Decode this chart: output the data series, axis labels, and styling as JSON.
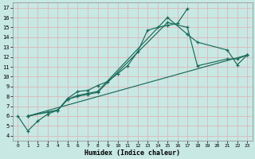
{
  "xlabel": "Humidex (Indice chaleur)",
  "bg_color": "#c8e8e4",
  "grid_color": "#ddb8b8",
  "line_color": "#1a6b5a",
  "xlim": [
    -0.5,
    23.5
  ],
  "ylim": [
    3.5,
    17.5
  ],
  "xticks": [
    0,
    1,
    2,
    3,
    4,
    5,
    6,
    7,
    8,
    9,
    10,
    11,
    12,
    13,
    14,
    15,
    16,
    17,
    18,
    19,
    20,
    21,
    22,
    23
  ],
  "yticks": [
    4,
    5,
    6,
    7,
    8,
    9,
    10,
    11,
    12,
    13,
    14,
    15,
    16,
    17
  ],
  "series": [
    {
      "x": [
        0,
        1,
        2,
        3,
        4,
        5,
        6,
        7,
        8,
        9,
        10,
        11,
        12,
        13,
        14,
        15,
        16,
        17
      ],
      "y": [
        6.0,
        4.5,
        5.5,
        6.2,
        6.6,
        7.8,
        8.5,
        8.6,
        9.1,
        9.5,
        10.3,
        11.1,
        12.5,
        14.7,
        15.0,
        15.2,
        15.4,
        16.9
      ]
    },
    {
      "x": [
        1,
        3,
        4,
        5,
        6,
        7,
        8,
        15,
        17,
        18,
        21,
        22,
        23
      ],
      "y": [
        6.0,
        6.4,
        6.6,
        7.7,
        8.1,
        8.3,
        8.5,
        16.0,
        14.3,
        13.5,
        12.7,
        11.2,
        12.2
      ]
    },
    {
      "x": [
        1,
        3,
        4,
        5,
        6,
        7,
        8,
        15,
        17,
        18,
        21,
        22,
        23
      ],
      "y": [
        6.0,
        6.4,
        6.6,
        7.7,
        8.0,
        8.2,
        8.4,
        15.5,
        15.0,
        11.1,
        11.8,
        11.8,
        12.2
      ]
    },
    {
      "x": [
        1,
        23
      ],
      "y": [
        6.0,
        12.2
      ]
    }
  ]
}
